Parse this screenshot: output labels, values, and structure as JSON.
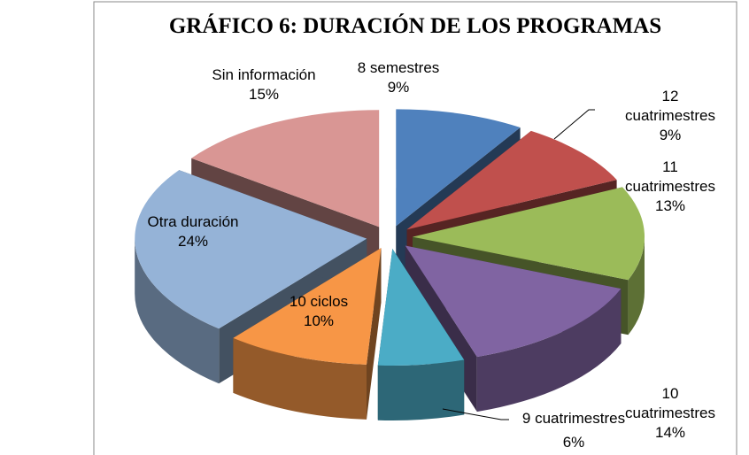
{
  "chart_data": {
    "type": "pie",
    "title": "GRÁFICO 6: DURACIÓN DE LOS PROGRAMAS",
    "categories": [
      "8 semestres",
      "12 cuatrimestres",
      "11 cuatrimestres",
      "10 cuatrimestres",
      "9 cuatrimestres",
      "10 ciclos",
      "Otra duración",
      "Sin información"
    ],
    "values": [
      9,
      9,
      13,
      14,
      6,
      10,
      24,
      15
    ],
    "value_labels": [
      "9%",
      "9%",
      "13%",
      "14%",
      "6%",
      "10%",
      "24%",
      "15%"
    ],
    "colors": [
      "#4f81bd",
      "#c0504d",
      "#9bbb59",
      "#8064a2",
      "#4bacc6",
      "#f79646",
      "#95b3d7",
      "#d99694"
    ]
  }
}
